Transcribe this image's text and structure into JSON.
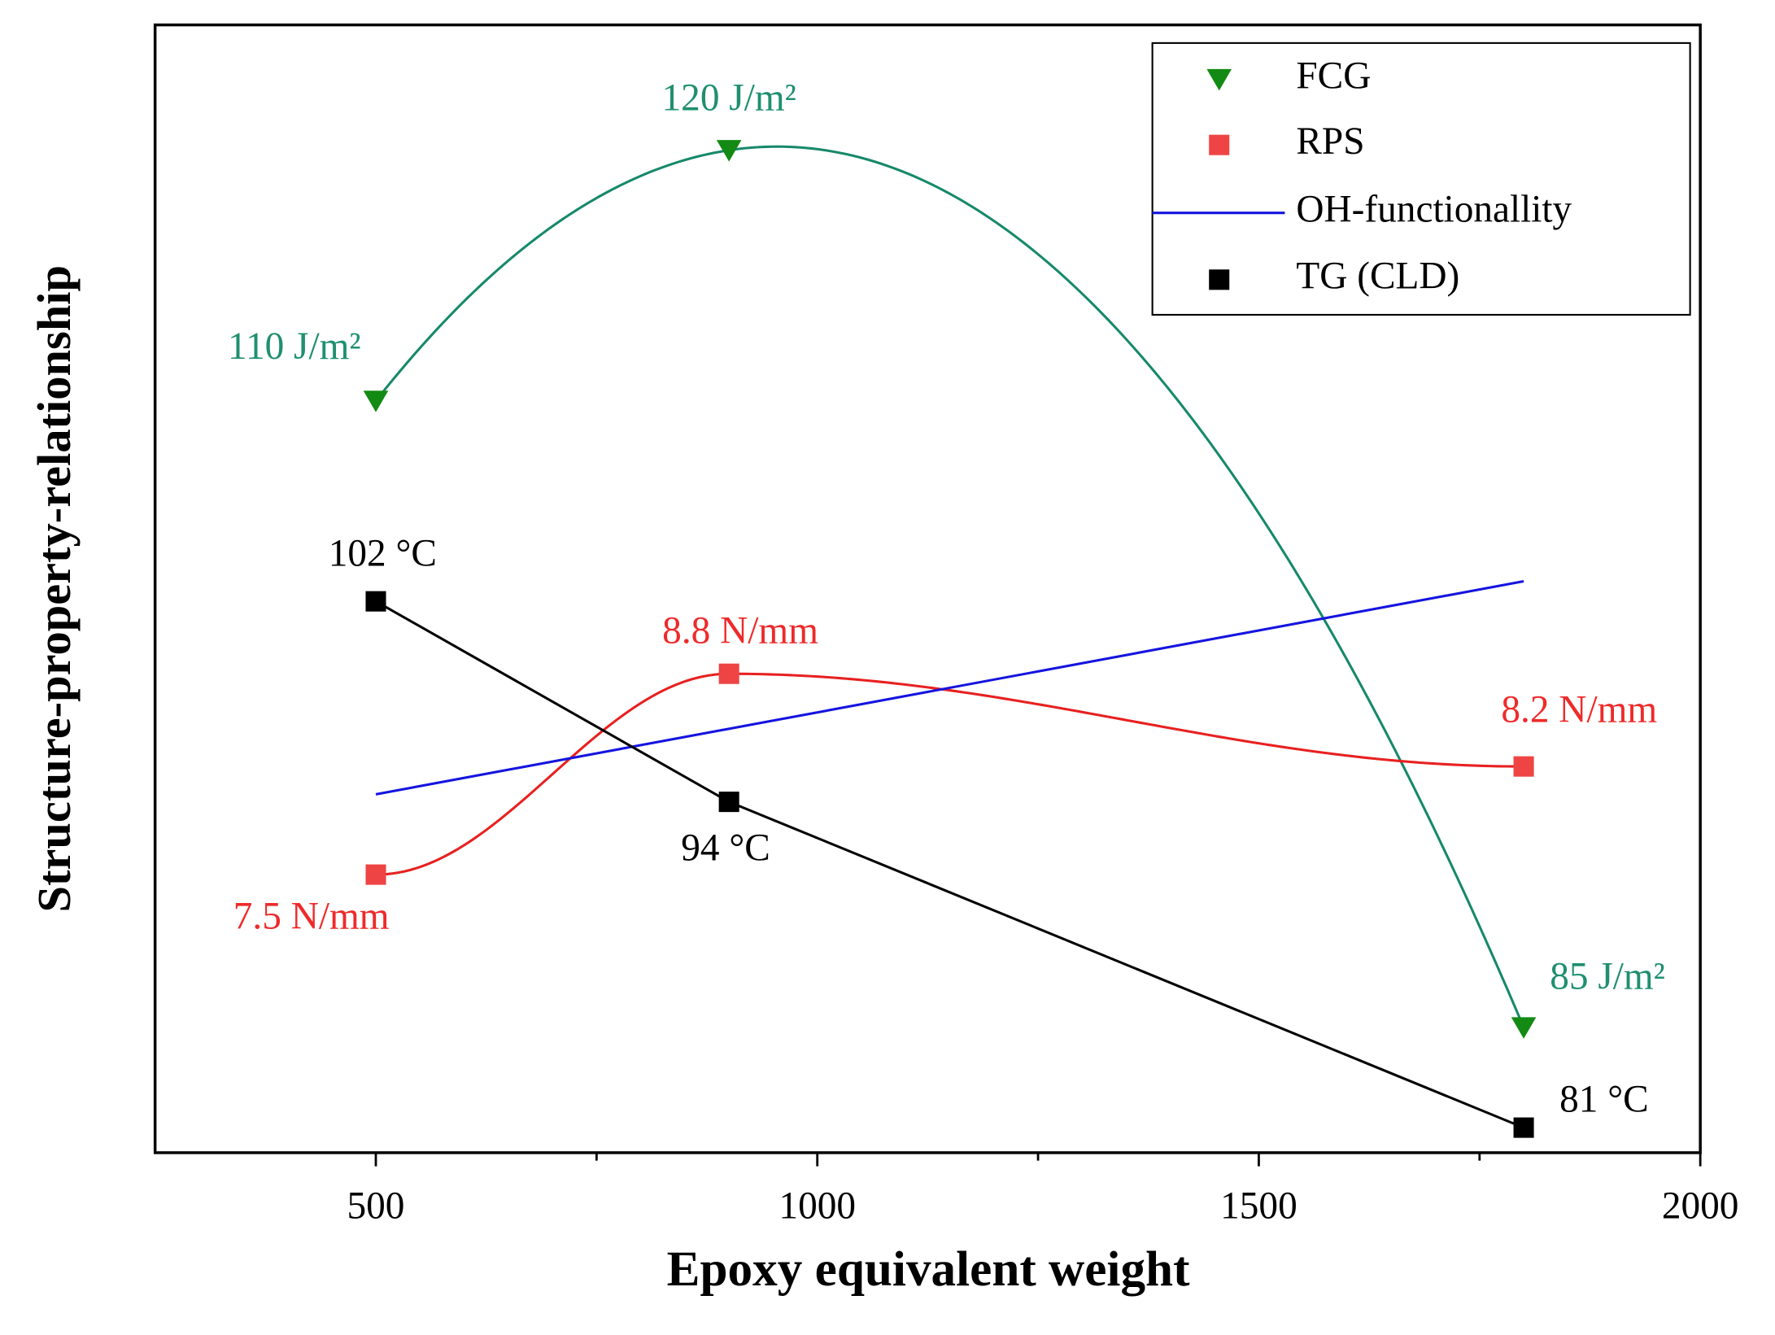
{
  "chart_data": {
    "type": "line",
    "xlabel": "Epoxy equivalent weight",
    "ylabel": "Structure-property-relationship",
    "xlim": [
      250,
      2000
    ],
    "xticks": [
      500,
      1000,
      1500,
      2000
    ],
    "xminorticks": [
      750,
      1250,
      1750
    ],
    "ylim": [
      80,
      125
    ],
    "legend": "upper right",
    "series": [
      {
        "name": "FCG",
        "color": "#138a13",
        "line_color": "#16896a",
        "label_color": "#1f8f6f",
        "marker": "triangle-down",
        "curve": "polynomial",
        "x": [
          500,
          900,
          1800
        ],
        "values": [
          110,
          120,
          85
        ],
        "value_labels": [
          "110 J/m²",
          "120 J/m²",
          "85 J/m²"
        ]
      },
      {
        "name": "RPS",
        "color": "#ee4444",
        "line_color": "#e82020",
        "label_color": "#ee2a2a",
        "marker": "square",
        "curve": "smooth",
        "x": [
          500,
          900,
          1800
        ],
        "values": [
          7.5,
          8.8,
          8.2
        ],
        "value_labels": [
          "7.5 N/mm",
          "8.8 N/mm",
          "8.2 N/mm"
        ],
        "ylim": [
          5.7,
          13
        ]
      },
      {
        "name": "OH-functionallity",
        "color": "#1414e0",
        "line_color": "#1414e0",
        "curve": "linear",
        "x": [
          500,
          1800
        ],
        "values": [
          94.3,
          102.8
        ]
      },
      {
        "name": "TG (CLD)",
        "color": "#000000",
        "line_color": "#000000",
        "label_color": "#000000",
        "marker": "square",
        "curve": "linear",
        "x": [
          500,
          900,
          1800
        ],
        "values": [
          102,
          94,
          81
        ],
        "value_labels": [
          "102 °C",
          "94 °C",
          "81 °C"
        ]
      }
    ]
  }
}
